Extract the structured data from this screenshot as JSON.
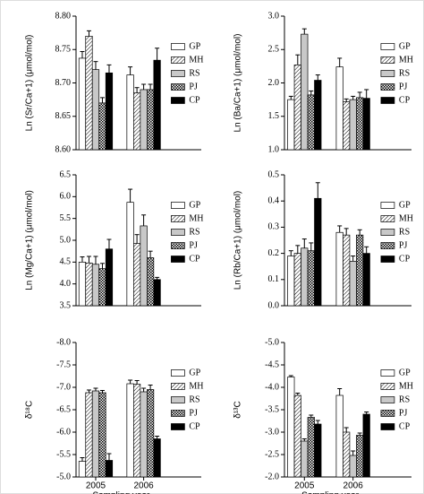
{
  "chart_data": [
    {
      "type": "bar",
      "y_label": "Ln (Sr/Ca+1) (μmol/mol)",
      "ylim": [
        8.6,
        8.8
      ],
      "yticks": [
        {
          "value": 8.6,
          "label": "8.60"
        },
        {
          "value": 8.65,
          "label": "8.65"
        },
        {
          "value": 8.7,
          "label": "8.70"
        },
        {
          "value": 8.75,
          "label": "8.75"
        },
        {
          "value": 8.8,
          "label": "8.80"
        }
      ],
      "series": [
        {
          "name": "GP",
          "color": "#ffffff",
          "values": [
            8.737,
            8.712
          ],
          "errors": [
            0.01,
            0.012
          ]
        },
        {
          "name": "MH",
          "color": "#ffffff",
          "pattern": "diagonal",
          "values": [
            8.77,
            8.685
          ],
          "errors": [
            0.008,
            0.008
          ]
        },
        {
          "name": "RS",
          "color": "#c8c8c8",
          "values": [
            8.72,
            8.69
          ],
          "errors": [
            0.012,
            0.008
          ]
        },
        {
          "name": "PJ",
          "color": "#ffffff",
          "pattern": "crosshatch",
          "values": [
            8.67,
            8.69
          ],
          "errors": [
            0.008,
            0.008
          ]
        },
        {
          "name": "CP",
          "color": "#000000",
          "values": [
            8.715,
            8.734
          ],
          "errors": [
            0.012,
            0.018
          ]
        }
      ]
    },
    {
      "type": "bar",
      "y_label": "Ln (Ba/Ca+1) (μmol/mol)",
      "ylim": [
        1.0,
        3.0
      ],
      "yticks": [
        {
          "value": 1.0,
          "label": "1.0"
        },
        {
          "value": 1.5,
          "label": "1.5"
        },
        {
          "value": 2.0,
          "label": "2.0"
        },
        {
          "value": 2.5,
          "label": "2.5"
        },
        {
          "value": 3.0,
          "label": "3.0"
        }
      ],
      "series": [
        {
          "name": "GP",
          "color": "#ffffff",
          "values": [
            1.75,
            2.24
          ],
          "errors": [
            0.05,
            0.13
          ]
        },
        {
          "name": "MH",
          "color": "#ffffff",
          "pattern": "diagonal",
          "values": [
            2.27,
            1.72
          ],
          "errors": [
            0.15,
            0.04
          ]
        },
        {
          "name": "RS",
          "color": "#c8c8c8",
          "values": [
            2.73,
            1.75
          ],
          "errors": [
            0.08,
            0.05
          ]
        },
        {
          "name": "PJ",
          "color": "#ffffff",
          "pattern": "crosshatch",
          "values": [
            1.82,
            1.78
          ],
          "errors": [
            0.06,
            0.08
          ]
        },
        {
          "name": "CP",
          "color": "#000000",
          "values": [
            2.04,
            1.77
          ],
          "errors": [
            0.08,
            0.13
          ]
        }
      ]
    },
    {
      "type": "bar",
      "y_label": "Ln (Mg/Ca+1) (μmol/mol)",
      "ylim": [
        3.5,
        6.5
      ],
      "yticks": [
        {
          "value": 3.5,
          "label": "3.5"
        },
        {
          "value": 4.0,
          "label": "4.0"
        },
        {
          "value": 4.5,
          "label": "4.5"
        },
        {
          "value": 5.0,
          "label": "5.0"
        },
        {
          "value": 5.5,
          "label": "5.5"
        },
        {
          "value": 6.0,
          "label": "6.0"
        },
        {
          "value": 6.5,
          "label": "6.5"
        }
      ],
      "series": [
        {
          "name": "GP",
          "color": "#ffffff",
          "values": [
            4.5,
            5.87
          ],
          "errors": [
            0.12,
            0.3
          ]
        },
        {
          "name": "MH",
          "color": "#ffffff",
          "pattern": "diagonal",
          "values": [
            4.48,
            4.93
          ],
          "errors": [
            0.15,
            0.2
          ]
        },
        {
          "name": "RS",
          "color": "#c8c8c8",
          "values": [
            4.45,
            5.33
          ],
          "errors": [
            0.18,
            0.25
          ]
        },
        {
          "name": "PJ",
          "color": "#ffffff",
          "pattern": "crosshatch",
          "values": [
            4.35,
            4.6
          ],
          "errors": [
            0.12,
            0.15
          ]
        },
        {
          "name": "CP",
          "color": "#000000",
          "values": [
            4.8,
            4.1
          ],
          "errors": [
            0.22,
            0.05
          ]
        }
      ]
    },
    {
      "type": "bar",
      "y_label": "Ln (Rb/Ca+1) (μmol/mol)",
      "ylim": [
        0.0,
        0.5
      ],
      "yticks": [
        {
          "value": 0.0,
          "label": "0.0"
        },
        {
          "value": 0.1,
          "label": "0.1"
        },
        {
          "value": 0.2,
          "label": "0.2"
        },
        {
          "value": 0.3,
          "label": "0.3"
        },
        {
          "value": 0.4,
          "label": "0.4"
        },
        {
          "value": 0.5,
          "label": "0.5"
        }
      ],
      "series": [
        {
          "name": "GP",
          "color": "#ffffff",
          "values": [
            0.19,
            0.28
          ],
          "errors": [
            0.02,
            0.025
          ]
        },
        {
          "name": "MH",
          "color": "#ffffff",
          "pattern": "diagonal",
          "values": [
            0.2,
            0.27
          ],
          "errors": [
            0.03,
            0.025
          ]
        },
        {
          "name": "RS",
          "color": "#c8c8c8",
          "values": [
            0.22,
            0.17
          ],
          "errors": [
            0.035,
            0.02
          ]
        },
        {
          "name": "PJ",
          "color": "#ffffff",
          "pattern": "crosshatch",
          "values": [
            0.21,
            0.27
          ],
          "errors": [
            0.03,
            0.02
          ]
        },
        {
          "name": "CP",
          "color": "#000000",
          "values": [
            0.41,
            0.2
          ],
          "errors": [
            0.06,
            0.025
          ]
        }
      ]
    },
    {
      "type": "bar",
      "y_label": "δ¹⁸C",
      "categories": [
        "2005",
        "2006"
      ],
      "x_label": "Sampling year",
      "ylim": [
        -5.0,
        -8.0
      ],
      "yticks": [
        {
          "value": -5.0,
          "label": "-5.0"
        },
        {
          "value": -5.5,
          "label": "-5.5"
        },
        {
          "value": -6.0,
          "label": "-6.0"
        },
        {
          "value": -6.5,
          "label": "-6.5"
        },
        {
          "value": -7.0,
          "label": "-7.0"
        },
        {
          "value": -7.5,
          "label": "-7.5"
        },
        {
          "value": -8.0,
          "label": "-8.0"
        }
      ],
      "series": [
        {
          "name": "GP",
          "color": "#ffffff",
          "values": [
            -5.35,
            -7.08
          ],
          "errors": [
            0.08,
            0.08
          ]
        },
        {
          "name": "MH",
          "color": "#ffffff",
          "pattern": "diagonal",
          "values": [
            -6.88,
            -7.07
          ],
          "errors": [
            0.06,
            0.08
          ]
        },
        {
          "name": "RS",
          "color": "#c8c8c8",
          "values": [
            -6.92,
            -6.9
          ],
          "errors": [
            0.06,
            0.08
          ]
        },
        {
          "name": "PJ",
          "color": "#ffffff",
          "pattern": "crosshatch",
          "values": [
            -6.88,
            -6.95
          ],
          "errors": [
            0.05,
            0.1
          ]
        },
        {
          "name": "CP",
          "color": "#000000",
          "values": [
            -5.37,
            -5.85
          ],
          "errors": [
            0.15,
            0.06
          ]
        }
      ]
    },
    {
      "type": "bar",
      "y_label": "δ¹³C",
      "categories": [
        "2005",
        "2006"
      ],
      "x_label": "Sampling year",
      "ylim": [
        -2.0,
        -5.0
      ],
      "yticks": [
        {
          "value": -2.0,
          "label": "-2.0"
        },
        {
          "value": -2.5,
          "label": "-2.5"
        },
        {
          "value": -3.0,
          "label": "-3.0"
        },
        {
          "value": -3.5,
          "label": "-3.5"
        },
        {
          "value": -4.0,
          "label": "-4.0"
        },
        {
          "value": -4.5,
          "label": "-4.5"
        },
        {
          "value": -5.0,
          "label": "-5.0"
        }
      ],
      "series": [
        {
          "name": "GP",
          "color": "#ffffff",
          "values": [
            -4.23,
            -3.82
          ],
          "errors": [
            0.03,
            0.15
          ]
        },
        {
          "name": "MH",
          "color": "#ffffff",
          "pattern": "diagonal",
          "values": [
            -3.82,
            -3.0
          ],
          "errors": [
            0.05,
            0.1
          ]
        },
        {
          "name": "RS",
          "color": "#c8c8c8",
          "values": [
            -2.8,
            -2.48
          ],
          "errors": [
            0.05,
            0.1
          ]
        },
        {
          "name": "PJ",
          "color": "#ffffff",
          "pattern": "crosshatch",
          "values": [
            -3.33,
            -2.93
          ],
          "errors": [
            0.05,
            0.05
          ]
        },
        {
          "name": "CP",
          "color": "#000000",
          "values": [
            -3.18,
            -3.4
          ],
          "errors": [
            0.08,
            0.05
          ]
        }
      ]
    }
  ]
}
